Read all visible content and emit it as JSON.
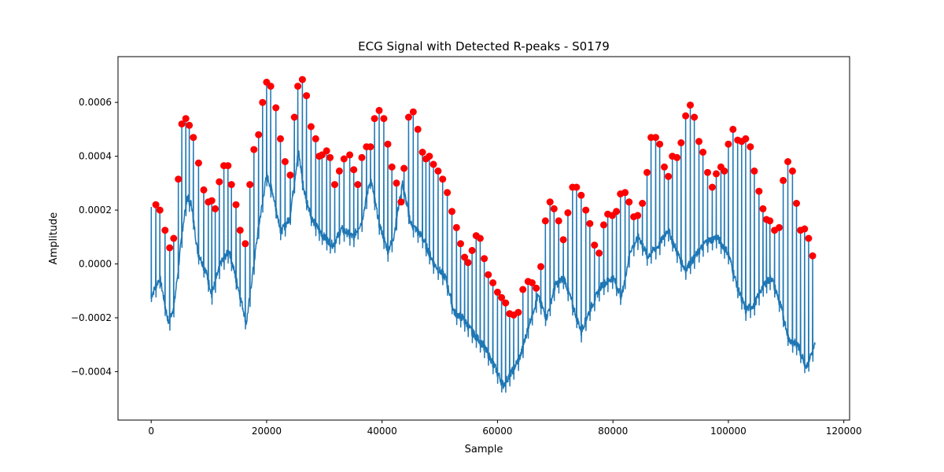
{
  "chart_data": {
    "type": "line",
    "title": "ECG Signal with Detected R-peaks - S0179",
    "xlabel": "Sample",
    "ylabel": "Amplitude",
    "xlim": [
      -5750,
      121000
    ],
    "ylim": [
      -0.00058,
      0.00077
    ],
    "xticks": [
      0,
      20000,
      40000,
      60000,
      80000,
      100000,
      120000
    ],
    "xtick_labels": [
      "0",
      "20000",
      "40000",
      "60000",
      "80000",
      "100000",
      "120000"
    ],
    "yticks": [
      -0.0004,
      -0.0002,
      0.0,
      0.0002,
      0.0004,
      0.0006
    ],
    "ytick_labels": [
      "−0.0004",
      "−0.0002",
      "0.0000",
      "0.0002",
      "0.0004",
      "0.0006"
    ],
    "grid": false,
    "colors": {
      "signal": "#1f77b4",
      "peaks": "#ff0000"
    },
    "signal": {
      "x_range": [
        0,
        115000
      ],
      "baseline": [
        [
          0,
          -0.00012
        ],
        [
          1500,
          -5e-05
        ],
        [
          3000,
          -0.00022
        ],
        [
          4000,
          -0.00015
        ],
        [
          5500,
          0.00014
        ],
        [
          6200,
          0.00025
        ],
        [
          7000,
          0.00022
        ],
        [
          8000,
          5e-05
        ],
        [
          9500,
          -3e-05
        ],
        [
          10500,
          -0.00011
        ],
        [
          12000,
          0.0
        ],
        [
          13500,
          5e-05
        ],
        [
          15000,
          -8e-05
        ],
        [
          16500,
          -0.00022
        ],
        [
          17500,
          -5e-05
        ],
        [
          18500,
          0.00012
        ],
        [
          20000,
          0.00033
        ],
        [
          21000,
          0.00027
        ],
        [
          22500,
          0.00012
        ],
        [
          24000,
          0.00017
        ],
        [
          25500,
          0.00042
        ],
        [
          26500,
          0.00027
        ],
        [
          28000,
          0.00016
        ],
        [
          30000,
          0.0001
        ],
        [
          31500,
          7e-05
        ],
        [
          33000,
          0.00013
        ],
        [
          35000,
          0.0001
        ],
        [
          36500,
          0.00016
        ],
        [
          38000,
          0.00032
        ],
        [
          39500,
          0.00015
        ],
        [
          41000,
          5e-05
        ],
        [
          42000,
          0.0001
        ],
        [
          43500,
          0.0003
        ],
        [
          45000,
          0.00015
        ],
        [
          47000,
          0.0001
        ],
        [
          49000,
          0.0
        ],
        [
          51000,
          -5e-05
        ],
        [
          52500,
          -0.00018
        ],
        [
          54000,
          -0.0002
        ],
        [
          55500,
          -0.00025
        ],
        [
          57500,
          -0.0003
        ],
        [
          59500,
          -0.00038
        ],
        [
          61000,
          -0.00045
        ],
        [
          62500,
          -0.0004
        ],
        [
          64000,
          -0.00034
        ],
        [
          65500,
          -0.00022
        ],
        [
          67000,
          -0.00012
        ],
        [
          68500,
          -0.0002
        ],
        [
          70000,
          -8e-05
        ],
        [
          71500,
          -5e-05
        ],
        [
          73000,
          -0.00015
        ],
        [
          74500,
          -0.00025
        ],
        [
          76000,
          -0.00017
        ],
        [
          78000,
          -8e-05
        ],
        [
          80000,
          -5e-05
        ],
        [
          81500,
          -0.00012
        ],
        [
          83000,
          5e-05
        ],
        [
          84500,
          0.0001
        ],
        [
          86000,
          3e-05
        ],
        [
          88000,
          7e-05
        ],
        [
          89500,
          0.00013
        ],
        [
          91000,
          5e-05
        ],
        [
          92500,
          -2e-05
        ],
        [
          94000,
          2e-05
        ],
        [
          96000,
          8e-05
        ],
        [
          98000,
          0.0001
        ],
        [
          100000,
          4e-05
        ],
        [
          101500,
          -8e-05
        ],
        [
          103000,
          -0.00017
        ],
        [
          104500,
          -0.00015
        ],
        [
          106000,
          -8e-05
        ],
        [
          107500,
          -5e-05
        ],
        [
          109000,
          -0.00015
        ],
        [
          110500,
          -0.00028
        ],
        [
          112000,
          -0.0003
        ],
        [
          113500,
          -0.00038
        ],
        [
          115000,
          -0.0003
        ]
      ]
    },
    "r_peaks": {
      "x": [
        800,
        1500,
        2400,
        3200,
        3900,
        4700,
        5300,
        6000,
        6600,
        7300,
        8200,
        9100,
        9900,
        10500,
        11100,
        11800,
        12600,
        13300,
        13900,
        14700,
        15400,
        16300,
        17100,
        17800,
        18600,
        19300,
        20000,
        20700,
        21600,
        22400,
        23200,
        24100,
        24800,
        25400,
        26200,
        26900,
        27700,
        28500,
        29100,
        29600,
        30400,
        31000,
        31800,
        32600,
        33400,
        34400,
        35100,
        35800,
        36500,
        37300,
        38000,
        38700,
        39500,
        40300,
        41000,
        41700,
        42500,
        43300,
        43800,
        44600,
        45400,
        46200,
        47000,
        47600,
        48200,
        48900,
        49700,
        50500,
        51300,
        52100,
        52900,
        53600,
        54300,
        54900,
        55600,
        56300,
        57000,
        57700,
        58400,
        59200,
        60000,
        60700,
        61400,
        62100,
        62800,
        63600,
        64400,
        65300,
        66000,
        66700,
        67500,
        68300,
        69100,
        69800,
        70600,
        71400,
        72200,
        73000,
        73700,
        74500,
        75300,
        76000,
        76800,
        77600,
        78400,
        79100,
        79900,
        80600,
        81300,
        82100,
        82800,
        83600,
        84300,
        85100,
        85900,
        86600,
        87400,
        88100,
        88900,
        89600,
        90300,
        91100,
        91800,
        92600,
        93400,
        94100,
        94900,
        95600,
        96400,
        97200,
        97900,
        98700,
        99300,
        100000,
        100800,
        101600,
        102300,
        103000,
        103800,
        104500,
        105300,
        106000,
        106600,
        107200,
        108000,
        108800,
        109500,
        110300,
        111100,
        111800,
        112500,
        113200,
        113900,
        114600
      ],
      "y": [
        0.00022,
        0.0002,
        0.000125,
        6e-05,
        9.5e-05,
        0.000315,
        0.00052,
        0.00054,
        0.000515,
        0.00047,
        0.000375,
        0.000275,
        0.00023,
        0.000235,
        0.000205,
        0.000305,
        0.000365,
        0.000365,
        0.000295,
        0.00022,
        0.000125,
        7.5e-05,
        0.000295,
        0.000425,
        0.00048,
        0.0006,
        0.000675,
        0.00066,
        0.00058,
        0.000465,
        0.00038,
        0.00033,
        0.000545,
        0.00066,
        0.000685,
        0.000625,
        0.00051,
        0.000465,
        0.0004,
        0.000405,
        0.00042,
        0.000395,
        0.000295,
        0.000345,
        0.00039,
        0.000405,
        0.00035,
        0.000295,
        0.000395,
        0.000435,
        0.000435,
        0.00054,
        0.00057,
        0.00054,
        0.000445,
        0.00036,
        0.0003,
        0.00023,
        0.000355,
        0.000545,
        0.000565,
        0.0005,
        0.000415,
        0.00039,
        0.0004,
        0.00037,
        0.000345,
        0.000315,
        0.000265,
        0.000195,
        0.000135,
        7.5e-05,
        2.5e-05,
        5e-06,
        5e-05,
        0.000105,
        9.5e-05,
        2e-05,
        -4e-05,
        -7e-05,
        -0.000105,
        -0.000125,
        -0.000145,
        -0.000185,
        -0.00019,
        -0.00018,
        -9.5e-05,
        -6.5e-05,
        -7e-05,
        -9e-05,
        -1e-05,
        0.00016,
        0.00023,
        0.000205,
        0.00016,
        9e-05,
        0.00019,
        0.000285,
        0.000285,
        0.000255,
        0.0002,
        0.00015,
        7e-05,
        4e-05,
        0.000145,
        0.000185,
        0.00018,
        0.000195,
        0.00026,
        0.000265,
        0.00023,
        0.000175,
        0.00018,
        0.000225,
        0.00034,
        0.00047,
        0.00047,
        0.000445,
        0.00036,
        0.000325,
        0.0004,
        0.000395,
        0.00045,
        0.00055,
        0.00059,
        0.000545,
        0.000455,
        0.000415,
        0.00034,
        0.000285,
        0.000335,
        0.00036,
        0.000345,
        0.000445,
        0.0005,
        0.00046,
        0.000455,
        0.000465,
        0.000435,
        0.000345,
        0.00027,
        0.000205,
        0.000165,
        0.00016,
        0.000125,
        0.000135,
        0.00031,
        0.00038,
        0.000345,
        0.000225,
        0.000125,
        0.00013,
        9.5e-05,
        3e-05
      ]
    }
  }
}
